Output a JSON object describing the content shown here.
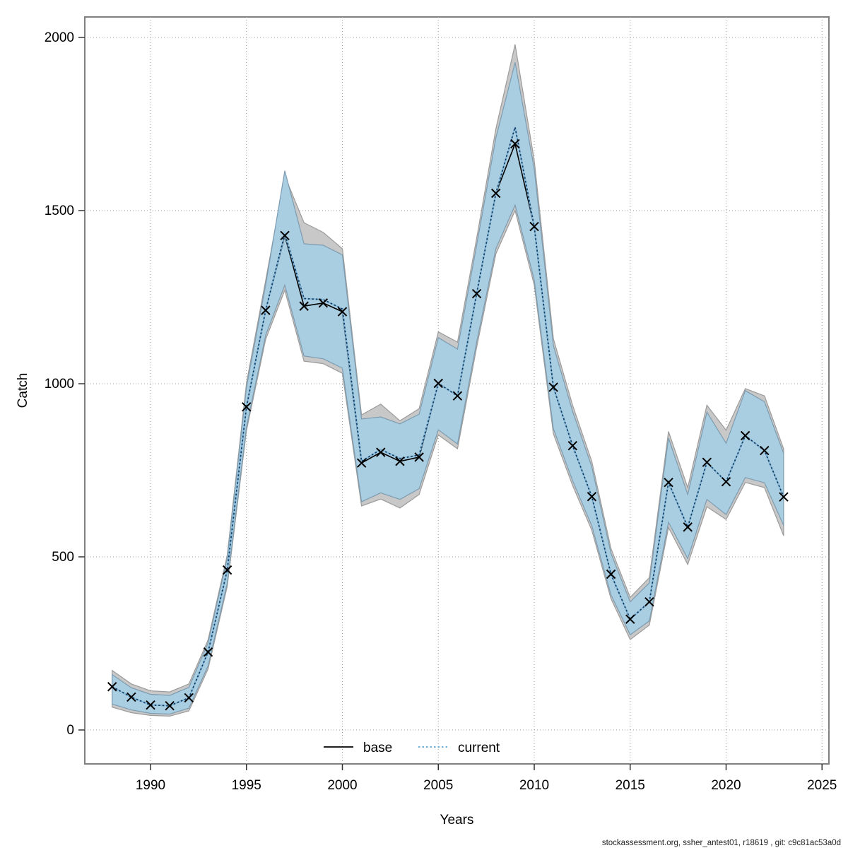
{
  "footer": "stockassessment.org, ssher_antest01, r18619 , git: c9c81ac53a0d",
  "chart_data": {
    "type": "line",
    "title": "",
    "xlabel": "Years",
    "ylabel": "Catch",
    "xlim": [
      1987.2,
      2025.4
    ],
    "ylim": [
      -100,
      2060
    ],
    "x_ticks": [
      1990,
      1995,
      2000,
      2005,
      2010,
      2015,
      2020,
      2025
    ],
    "x_tick_labels": [
      "1990",
      "1995",
      "2000",
      "2005",
      "2010",
      "2015",
      "2020",
      "2025"
    ],
    "y_ticks": [
      0,
      500,
      1000,
      1500,
      2000
    ],
    "y_tick_labels": [
      "0",
      "500",
      "1000",
      "1500",
      "2000"
    ],
    "grid": "dotted",
    "legend_position": "bottom-center",
    "years": [
      1988,
      1989,
      1990,
      1991,
      1992,
      1993,
      1994,
      1995,
      1996,
      1997,
      1998,
      1999,
      2000,
      2001,
      2002,
      2003,
      2004,
      2005,
      2006,
      2007,
      2008,
      2009,
      2010,
      2011,
      2012,
      2013,
      2014,
      2015,
      2016,
      2017,
      2018,
      2019,
      2020,
      2021,
      2022,
      2023
    ],
    "series": [
      {
        "name": "base",
        "line_style": "solid",
        "color": "#000000",
        "marker": "x",
        "values": [
          125,
          95,
          72,
          70,
          93,
          225,
          462,
          933,
          1212,
          1428,
          1224,
          1233,
          1208,
          771,
          802,
          776,
          788,
          1001,
          965,
          1260,
          1550,
          1693,
          1454,
          990,
          821,
          674,
          450,
          320,
          370,
          715,
          586,
          773,
          717,
          850,
          807,
          673
        ],
        "ci_lo": [
          66,
          50,
          42,
          40,
          55,
          176,
          415,
          865,
          1128,
          1270,
          1065,
          1058,
          1030,
          647,
          667,
          641,
          680,
          852,
          812,
          1105,
          1375,
          1500,
          1285,
          855,
          706,
          577,
          379,
          261,
          303,
          585,
          478,
          645,
          608,
          715,
          700,
          561
        ],
        "ci_hi": [
          172,
          133,
          113,
          110,
          133,
          260,
          505,
          1002,
          1298,
          1600,
          1465,
          1437,
          1390,
          910,
          941,
          893,
          928,
          1150,
          1120,
          1420,
          1736,
          1980,
          1645,
          1130,
          938,
          776,
          524,
          383,
          440,
          862,
          700,
          938,
          866,
          986,
          965,
          812
        ],
        "ci_fill": "#c8c8c8",
        "ci_edge": "#9b9b9b"
      },
      {
        "name": "current",
        "line_style": "dotted",
        "color": "#12395f",
        "underlay_color": "#85b9da",
        "marker": "none",
        "values": [
          125,
          95,
          72,
          70,
          93,
          225,
          462,
          933,
          1212,
          1433,
          1246,
          1243,
          1216,
          776,
          810,
          784,
          794,
          1001,
          965,
          1260,
          1550,
          1741,
          1454,
          990,
          821,
          674,
          450,
          320,
          370,
          715,
          586,
          773,
          717,
          850,
          807,
          673
        ],
        "ci_lo": [
          75,
          58,
          48,
          46,
          63,
          185,
          424,
          875,
          1140,
          1285,
          1080,
          1072,
          1045,
          659,
          685,
          666,
          697,
          867,
          826,
          1120,
          1390,
          1516,
          1300,
          870,
          720,
          590,
          390,
          275,
          315,
          600,
          495,
          666,
          622,
          729,
          714,
          591
        ],
        "ci_hi": [
          160,
          122,
          103,
          100,
          123,
          251,
          497,
          990,
          1285,
          1615,
          1404,
          1400,
          1372,
          898,
          904,
          884,
          912,
          1133,
          1100,
          1400,
          1710,
          1928,
          1620,
          1110,
          920,
          760,
          510,
          370,
          425,
          843,
          680,
          918,
          828,
          980,
          948,
          799
        ],
        "ci_fill": "#a9cde1",
        "ci_edge": "#7e9cb0"
      }
    ],
    "legend": [
      {
        "label": "base",
        "style": "solid",
        "color": "#000000"
      },
      {
        "label": "current",
        "style": "dotted",
        "color": "#5fa8d3"
      }
    ]
  }
}
